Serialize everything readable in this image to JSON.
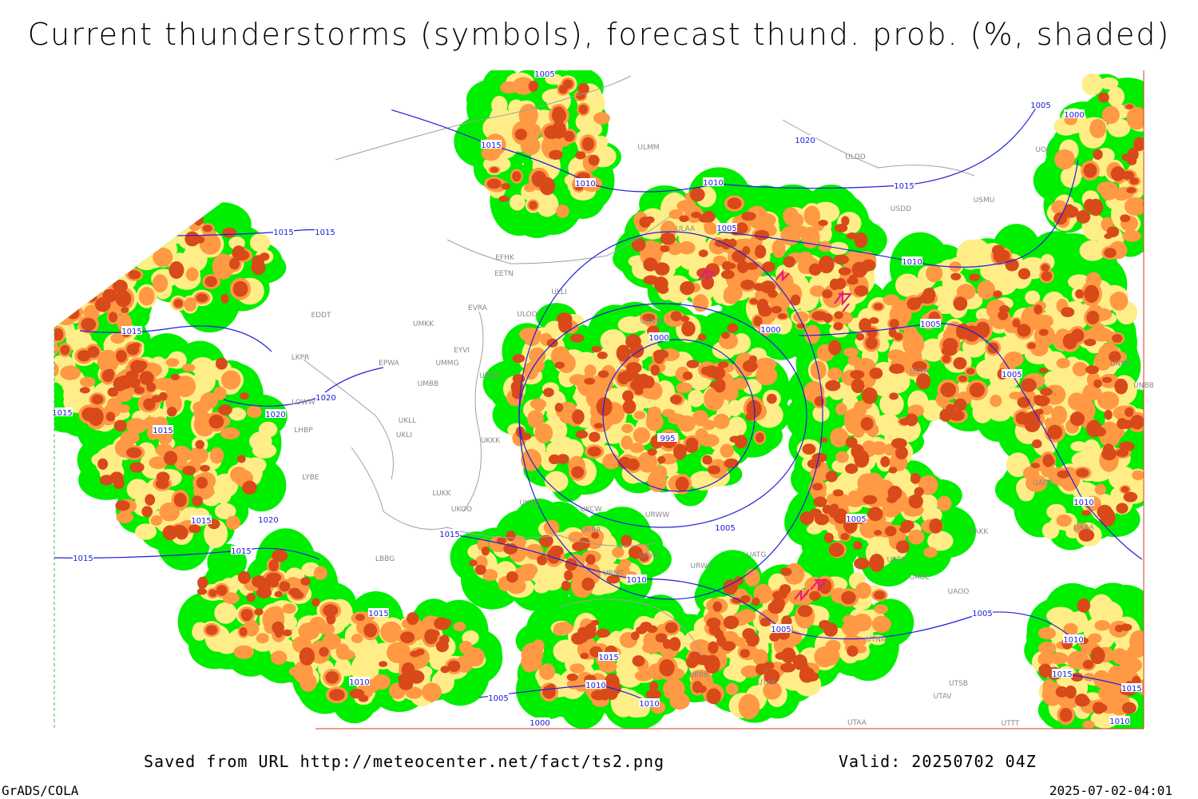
{
  "title": "Current thunderstorms (symbols), forecast thund. prob. (%, shaded)",
  "footer": {
    "saved": "Saved from URL http://meteocenter.net/fact/ts2.png",
    "valid": "Valid: 20250702 04Z",
    "software": "GrADS/COLA",
    "timestamp": "2025-07-02-04:01"
  },
  "isobar_labels": [
    "1005",
    "1015",
    "1010",
    "1010",
    "1005",
    "1020",
    "1015",
    "1005",
    "1000",
    "1015",
    "1015",
    "1015",
    "1000",
    "1000",
    "1010",
    "1005",
    "1005",
    "1020",
    "1020",
    "1015",
    "1015",
    "995",
    "1005",
    "1005",
    "1010",
    "1015",
    "1020",
    "1015",
    "1015",
    "1015",
    "1010",
    "1015",
    "1005",
    "1005",
    "1010",
    "1015",
    "1010",
    "1010",
    "1005",
    "1010",
    "1000",
    "1015",
    "1015",
    "1010"
  ],
  "station_labels": [
    "ULMM",
    "ULDD",
    "USDD",
    "USMU",
    "UOII",
    "ULAA",
    "EFHK",
    "EETN",
    "ULLI",
    "ULOO",
    "EVRA",
    "EDDT",
    "UMKK",
    "ULWW",
    "EYVI",
    "EPWA",
    "UMMG",
    "LKPR",
    "UMMS",
    "UMBB",
    "LOWW",
    "LHBP",
    "UKLL",
    "UKLI",
    "UKKK",
    "LYBE",
    "LUKK",
    "UKOO",
    "UKDE",
    "UKCW",
    "URRR",
    "URWW",
    "URWI",
    "UATG",
    "URWA",
    "URMT",
    "UATA",
    "UAOL",
    "UAOO",
    "LBBG",
    "USTR",
    "UNNT",
    "UNBB",
    "UTAK",
    "UTSB",
    "UTAV",
    "UTTT",
    "UTAA",
    "UBBB",
    "UTNN",
    "UAAA",
    "UAKK",
    "UACC"
  ]
}
